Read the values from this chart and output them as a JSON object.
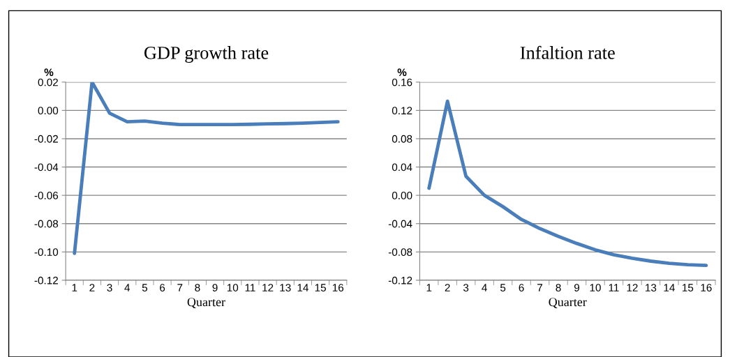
{
  "chart_data": [
    {
      "type": "line",
      "title": "GDP growth rate",
      "xlabel": "Quarter",
      "ylabel": "%",
      "categories": [
        "1",
        "2",
        "3",
        "4",
        "5",
        "6",
        "7",
        "8",
        "9",
        "10",
        "11",
        "12",
        "13",
        "14",
        "15",
        "16"
      ],
      "series": [
        {
          "color": "#4a7ebb",
          "values": [
            -0.101,
            0.02,
            -0.002,
            -0.008,
            -0.0075,
            -0.009,
            -0.01,
            -0.01,
            -0.01,
            -0.01,
            -0.0098,
            -0.0095,
            -0.0093,
            -0.009,
            -0.0085,
            -0.008
          ]
        }
      ],
      "ylim": [
        -0.12,
        0.02
      ],
      "yticks": [
        {
          "value": -0.12,
          "label": "-0.12"
        },
        {
          "value": -0.1,
          "label": "-0.10"
        },
        {
          "value": -0.08,
          "label": "-0.08"
        },
        {
          "value": -0.06,
          "label": "-0.06"
        },
        {
          "value": -0.04,
          "label": "-0.04"
        },
        {
          "value": -0.02,
          "label": "-0.02"
        },
        {
          "value": 0,
          "label": "0.00"
        },
        {
          "value": 0.02,
          "label": "0.02"
        }
      ],
      "grid": "y",
      "legend": false
    },
    {
      "type": "line",
      "title": "Infaltion rate",
      "xlabel": "Quarter",
      "ylabel": "%",
      "categories": [
        "1",
        "2",
        "3",
        "4",
        "5",
        "6",
        "7",
        "8",
        "9",
        "10",
        "11",
        "12",
        "13",
        "14",
        "15",
        "16"
      ],
      "series": [
        {
          "color": "#4a7ebb",
          "values": [
            0.01,
            0.133,
            0.027,
            0.0,
            -0.016,
            -0.034,
            -0.047,
            -0.058,
            -0.068,
            -0.077,
            -0.084,
            -0.089,
            -0.093,
            -0.096,
            -0.098,
            -0.099
          ]
        }
      ],
      "ylim": [
        -0.12,
        0.16
      ],
      "yticks": [
        {
          "value": -0.12,
          "label": "-0.12"
        },
        {
          "value": -0.08,
          "label": "-0.08"
        },
        {
          "value": -0.04,
          "label": "-0.04"
        },
        {
          "value": 0,
          "label": "0.00"
        },
        {
          "value": 0.04,
          "label": "0.04"
        },
        {
          "value": 0.08,
          "label": "0.08"
        },
        {
          "value": 0.12,
          "label": "0.12"
        },
        {
          "value": 0.16,
          "label": "0.16"
        }
      ],
      "grid": "y",
      "legend": false
    }
  ]
}
